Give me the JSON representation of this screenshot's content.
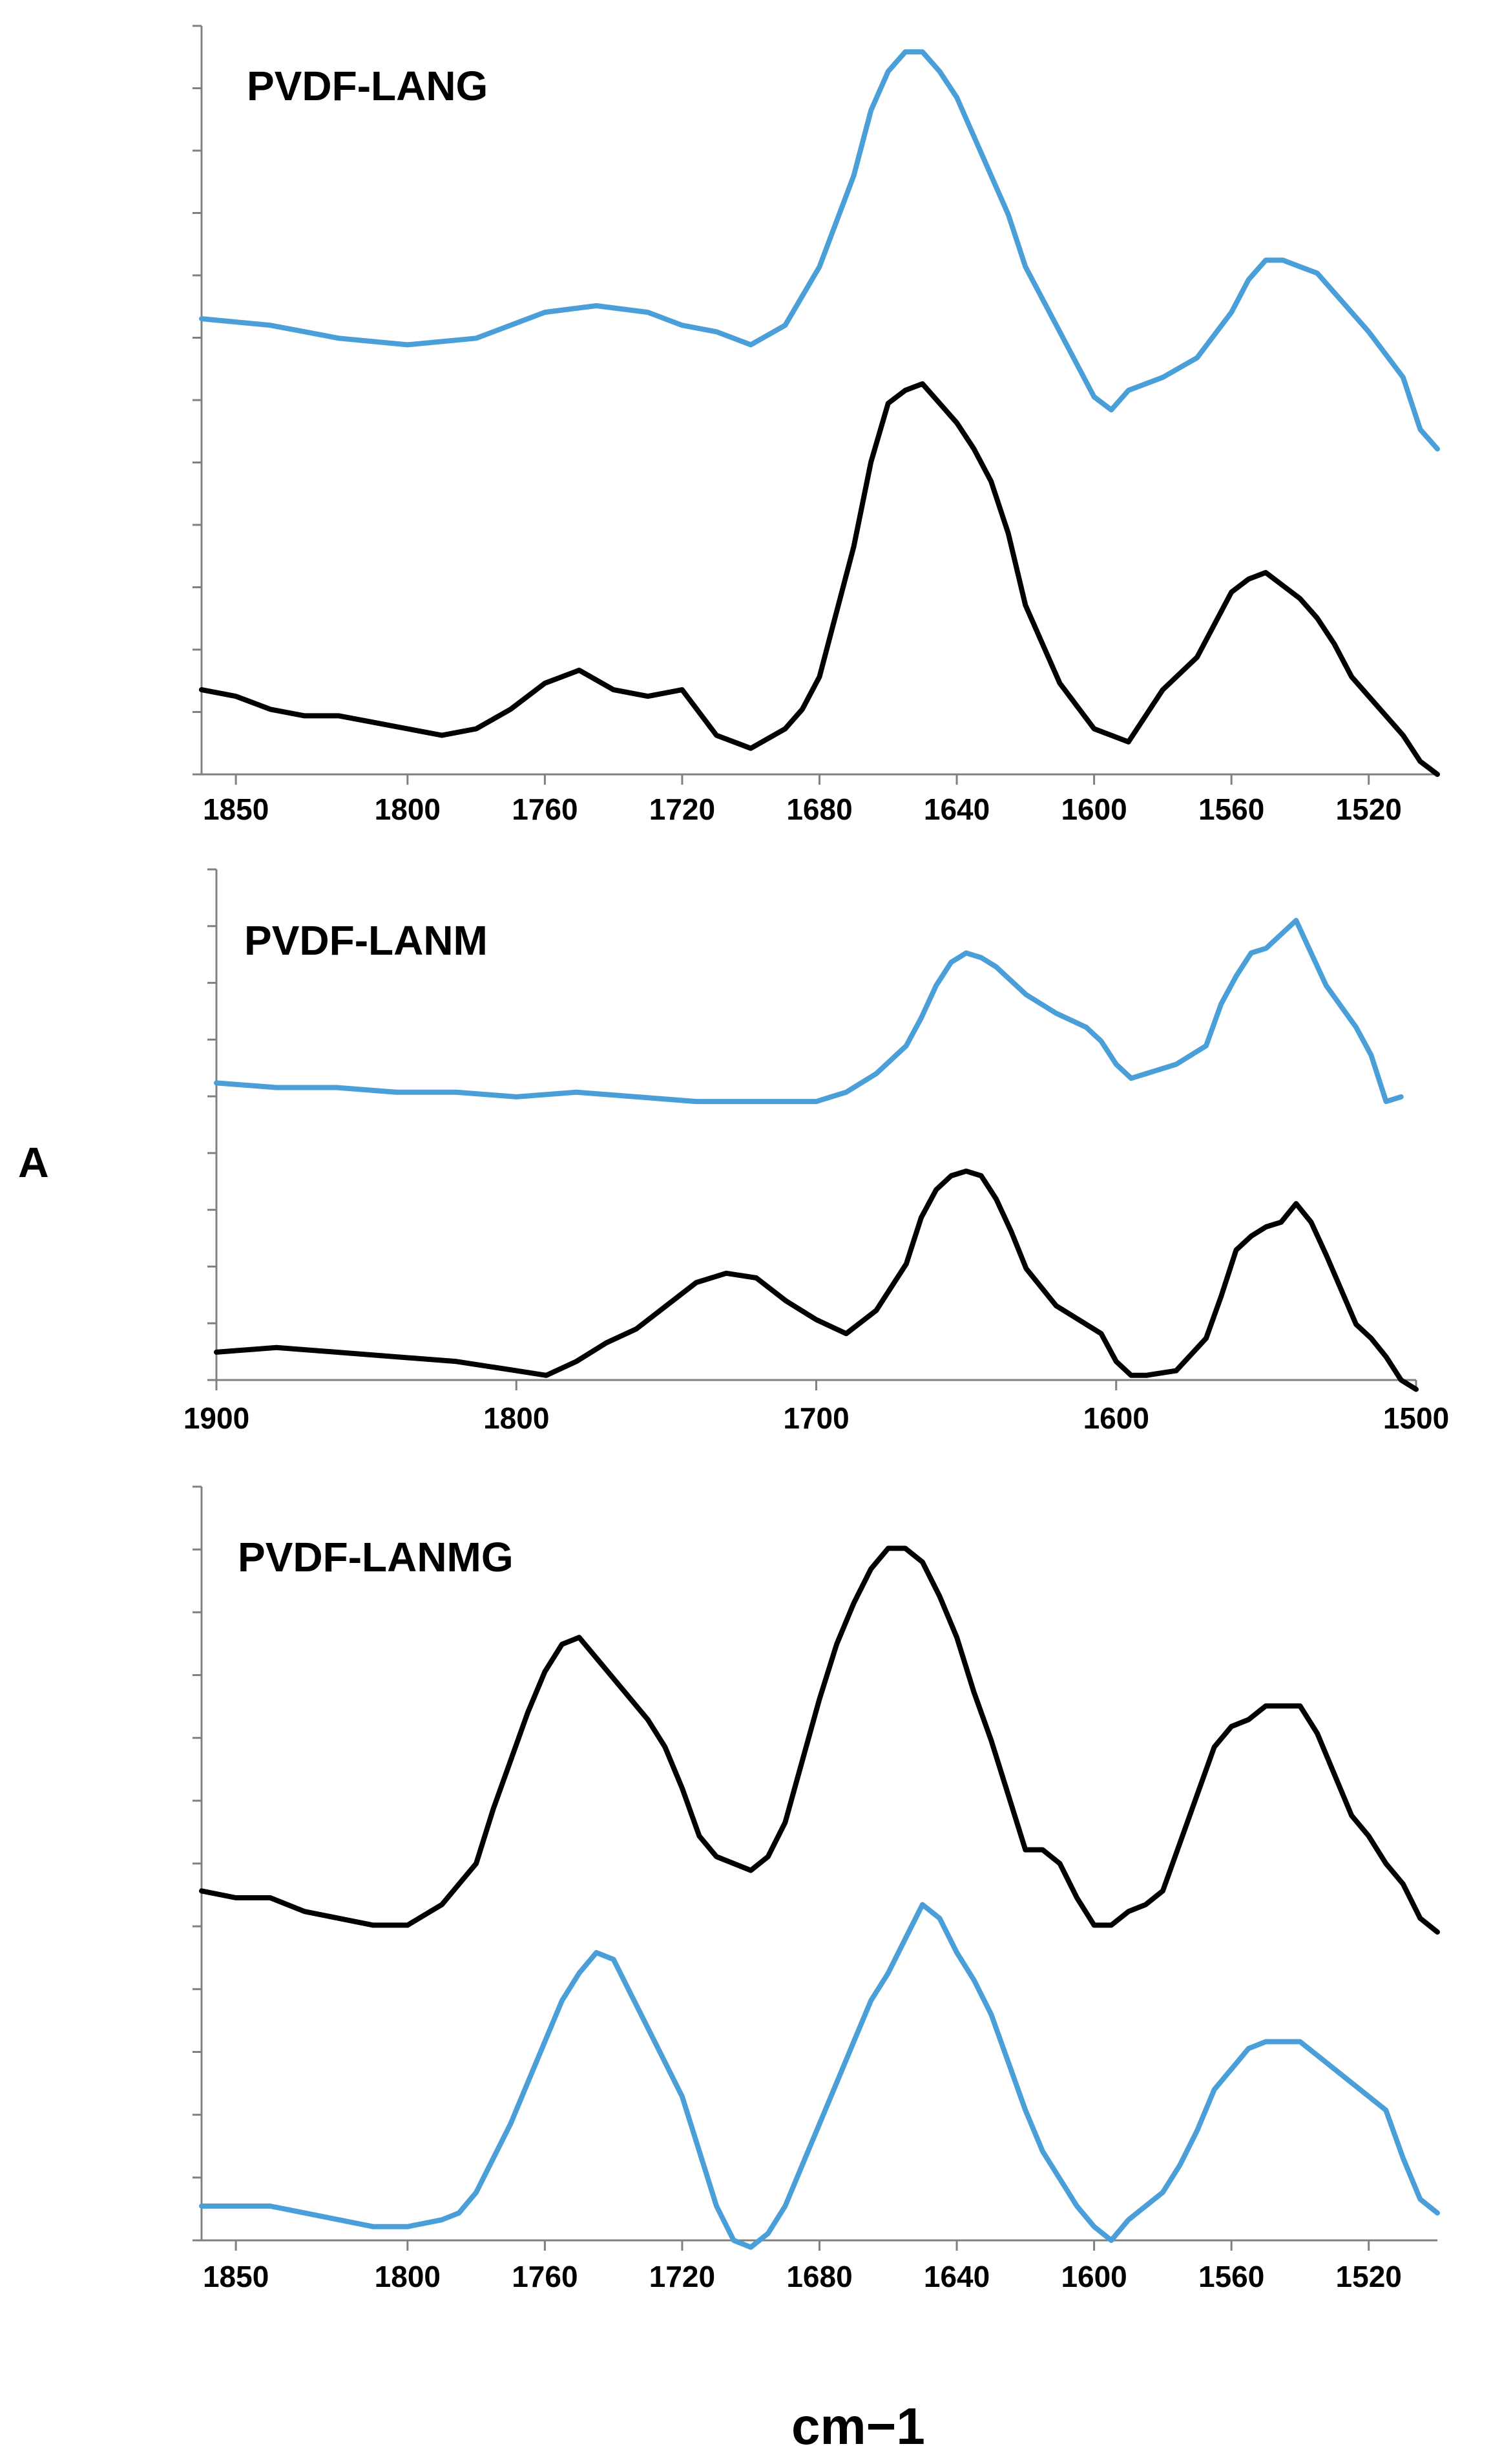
{
  "figure": {
    "ylabel": "A",
    "xlabel": "cm−1"
  },
  "chart_data": [
    {
      "type": "line",
      "title": "PVDF-LANG",
      "xlabel": "cm−1",
      "ylabel": "A",
      "xlim": [
        1860,
        1500
      ],
      "ylim": [
        0,
        1.15
      ],
      "xticks": [
        1850,
        1800,
        1760,
        1720,
        1680,
        1640,
        1600,
        1560,
        1520
      ],
      "tick_labels": [
        "1850",
        "1800",
        "1760",
        "1720",
        "1680",
        "1640",
        "1600",
        "1560",
        "1520"
      ],
      "series": [
        {
          "name": "blue",
          "color": "#4a9fd8",
          "x": [
            1860,
            1840,
            1820,
            1800,
            1780,
            1760,
            1745,
            1730,
            1720,
            1710,
            1700,
            1690,
            1680,
            1670,
            1665,
            1660,
            1655,
            1650,
            1645,
            1640,
            1635,
            1630,
            1625,
            1620,
            1610,
            1600,
            1595,
            1590,
            1580,
            1570,
            1560,
            1555,
            1550,
            1545,
            1540,
            1535,
            1530,
            1520,
            1510,
            1505,
            1500
          ],
          "y": [
            0.7,
            0.69,
            0.67,
            0.66,
            0.67,
            0.71,
            0.72,
            0.71,
            0.69,
            0.68,
            0.66,
            0.69,
            0.78,
            0.92,
            1.02,
            1.08,
            1.11,
            1.11,
            1.08,
            1.04,
            0.98,
            0.92,
            0.86,
            0.78,
            0.68,
            0.58,
            0.56,
            0.59,
            0.61,
            0.64,
            0.71,
            0.76,
            0.79,
            0.79,
            0.78,
            0.77,
            0.74,
            0.68,
            0.61,
            0.53,
            0.5
          ]
        },
        {
          "name": "black",
          "color": "#000000",
          "x": [
            1860,
            1850,
            1840,
            1830,
            1820,
            1810,
            1800,
            1790,
            1780,
            1770,
            1760,
            1750,
            1740,
            1730,
            1720,
            1710,
            1700,
            1690,
            1685,
            1680,
            1670,
            1665,
            1660,
            1655,
            1650,
            1645,
            1640,
            1635,
            1630,
            1625,
            1620,
            1610,
            1600,
            1590,
            1585,
            1580,
            1570,
            1565,
            1560,
            1555,
            1550,
            1545,
            1540,
            1535,
            1530,
            1525,
            1520,
            1515,
            1510,
            1505,
            1500
          ],
          "y": [
            0.13,
            0.12,
            0.1,
            0.09,
            0.09,
            0.08,
            0.07,
            0.06,
            0.07,
            0.1,
            0.14,
            0.16,
            0.13,
            0.12,
            0.13,
            0.06,
            0.04,
            0.07,
            0.1,
            0.15,
            0.35,
            0.48,
            0.57,
            0.59,
            0.6,
            0.57,
            0.54,
            0.5,
            0.45,
            0.37,
            0.26,
            0.14,
            0.07,
            0.05,
            0.09,
            0.13,
            0.18,
            0.23,
            0.28,
            0.3,
            0.31,
            0.29,
            0.27,
            0.24,
            0.2,
            0.15,
            0.12,
            0.09,
            0.06,
            0.02,
            0.0
          ]
        }
      ]
    },
    {
      "type": "line",
      "title": "PVDF-LANM",
      "xlabel": "cm−1",
      "ylabel": "A",
      "xlim": [
        1900,
        1500
      ],
      "ylim": [
        0,
        1.1
      ],
      "xticks": [
        1900,
        1800,
        1700,
        1600,
        1500
      ],
      "tick_labels": [
        "1900",
        "1800",
        "1700",
        "1600",
        "1500"
      ],
      "series": [
        {
          "name": "blue",
          "color": "#4a9fd8",
          "x": [
            1900,
            1880,
            1860,
            1840,
            1820,
            1800,
            1780,
            1760,
            1740,
            1720,
            1700,
            1690,
            1680,
            1670,
            1665,
            1660,
            1655,
            1650,
            1645,
            1640,
            1635,
            1630,
            1620,
            1610,
            1605,
            1600,
            1595,
            1590,
            1580,
            1570,
            1565,
            1560,
            1555,
            1550,
            1545,
            1540,
            1535,
            1530,
            1520,
            1515,
            1510,
            1505
          ],
          "y": [
            0.64,
            0.63,
            0.63,
            0.62,
            0.62,
            0.61,
            0.62,
            0.61,
            0.6,
            0.6,
            0.6,
            0.62,
            0.66,
            0.72,
            0.78,
            0.85,
            0.9,
            0.92,
            0.91,
            0.89,
            0.86,
            0.83,
            0.79,
            0.76,
            0.73,
            0.68,
            0.65,
            0.66,
            0.68,
            0.72,
            0.81,
            0.87,
            0.92,
            0.93,
            0.96,
            0.99,
            0.92,
            0.85,
            0.76,
            0.7,
            0.6,
            0.61
          ]
        },
        {
          "name": "black",
          "color": "#000000",
          "x": [
            1900,
            1880,
            1860,
            1840,
            1820,
            1800,
            1790,
            1780,
            1770,
            1760,
            1750,
            1740,
            1730,
            1720,
            1710,
            1700,
            1690,
            1680,
            1670,
            1665,
            1660,
            1655,
            1650,
            1645,
            1640,
            1635,
            1630,
            1620,
            1610,
            1605,
            1600,
            1595,
            1590,
            1580,
            1570,
            1565,
            1560,
            1555,
            1550,
            1545,
            1540,
            1535,
            1530,
            1520,
            1515,
            1510,
            1505,
            1500
          ],
          "y": [
            0.06,
            0.07,
            0.06,
            0.05,
            0.04,
            0.02,
            0.01,
            0.04,
            0.08,
            0.11,
            0.16,
            0.21,
            0.23,
            0.22,
            0.17,
            0.13,
            0.1,
            0.15,
            0.25,
            0.35,
            0.41,
            0.44,
            0.45,
            0.44,
            0.39,
            0.32,
            0.24,
            0.16,
            0.12,
            0.1,
            0.04,
            0.01,
            0.01,
            0.02,
            0.09,
            0.18,
            0.28,
            0.31,
            0.33,
            0.34,
            0.38,
            0.34,
            0.27,
            0.12,
            0.09,
            0.05,
            0.0,
            -0.02
          ]
        }
      ]
    },
    {
      "type": "line",
      "title": "PVDF-LANMG",
      "xlabel": "cm−1",
      "ylabel": "A",
      "xlim": [
        1860,
        1500
      ],
      "ylim": [
        0,
        1.1
      ],
      "xticks": [
        1850,
        1800,
        1760,
        1720,
        1680,
        1640,
        1600,
        1560,
        1520
      ],
      "tick_labels": [
        "1850",
        "1800",
        "1760",
        "1720",
        "1680",
        "1640",
        "1600",
        "1560",
        "1520"
      ],
      "series": [
        {
          "name": "black",
          "color": "#000000",
          "x": [
            1860,
            1850,
            1840,
            1830,
            1820,
            1810,
            1800,
            1790,
            1785,
            1780,
            1775,
            1770,
            1765,
            1760,
            1755,
            1750,
            1745,
            1740,
            1735,
            1730,
            1725,
            1720,
            1715,
            1710,
            1705,
            1700,
            1695,
            1690,
            1685,
            1680,
            1675,
            1670,
            1665,
            1660,
            1655,
            1650,
            1645,
            1640,
            1635,
            1630,
            1625,
            1620,
            1615,
            1610,
            1605,
            1600,
            1595,
            1590,
            1585,
            1580,
            1575,
            1570,
            1565,
            1560,
            1555,
            1550,
            1545,
            1540,
            1535,
            1530,
            1525,
            1520,
            1515,
            1510,
            1505,
            1500
          ],
          "y": [
            0.51,
            0.5,
            0.5,
            0.48,
            0.47,
            0.46,
            0.46,
            0.49,
            0.52,
            0.55,
            0.63,
            0.7,
            0.77,
            0.83,
            0.87,
            0.88,
            0.85,
            0.82,
            0.79,
            0.76,
            0.72,
            0.66,
            0.59,
            0.56,
            0.55,
            0.54,
            0.56,
            0.61,
            0.7,
            0.79,
            0.87,
            0.93,
            0.98,
            1.01,
            1.01,
            0.99,
            0.94,
            0.88,
            0.8,
            0.73,
            0.65,
            0.57,
            0.57,
            0.55,
            0.5,
            0.46,
            0.46,
            0.48,
            0.49,
            0.51,
            0.58,
            0.65,
            0.72,
            0.75,
            0.76,
            0.78,
            0.78,
            0.78,
            0.74,
            0.68,
            0.62,
            0.59,
            0.55,
            0.52,
            0.47,
            0.45
          ]
        },
        {
          "name": "blue",
          "color": "#4a9fd8",
          "x": [
            1860,
            1850,
            1840,
            1830,
            1820,
            1810,
            1800,
            1790,
            1785,
            1780,
            1775,
            1770,
            1765,
            1760,
            1755,
            1750,
            1745,
            1740,
            1735,
            1730,
            1725,
            1720,
            1715,
            1710,
            1705,
            1700,
            1695,
            1690,
            1685,
            1680,
            1675,
            1670,
            1665,
            1660,
            1655,
            1650,
            1645,
            1640,
            1635,
            1630,
            1625,
            1620,
            1615,
            1610,
            1605,
            1600,
            1595,
            1590,
            1585,
            1580,
            1575,
            1570,
            1565,
            1560,
            1555,
            1550,
            1545,
            1540,
            1535,
            1530,
            1525,
            1520,
            1515,
            1510,
            1505,
            1500
          ],
          "y": [
            0.05,
            0.05,
            0.05,
            0.04,
            0.03,
            0.02,
            0.02,
            0.03,
            0.04,
            0.07,
            0.12,
            0.17,
            0.23,
            0.29,
            0.35,
            0.39,
            0.42,
            0.41,
            0.36,
            0.31,
            0.26,
            0.21,
            0.13,
            0.05,
            0.0,
            -0.01,
            0.01,
            0.05,
            0.11,
            0.17,
            0.23,
            0.29,
            0.35,
            0.39,
            0.44,
            0.49,
            0.47,
            0.42,
            0.38,
            0.33,
            0.26,
            0.19,
            0.13,
            0.09,
            0.05,
            0.02,
            0.0,
            0.03,
            0.05,
            0.07,
            0.11,
            0.16,
            0.22,
            0.25,
            0.28,
            0.29,
            0.29,
            0.29,
            0.27,
            0.25,
            0.23,
            0.21,
            0.19,
            0.12,
            0.06,
            0.04
          ]
        }
      ]
    }
  ]
}
